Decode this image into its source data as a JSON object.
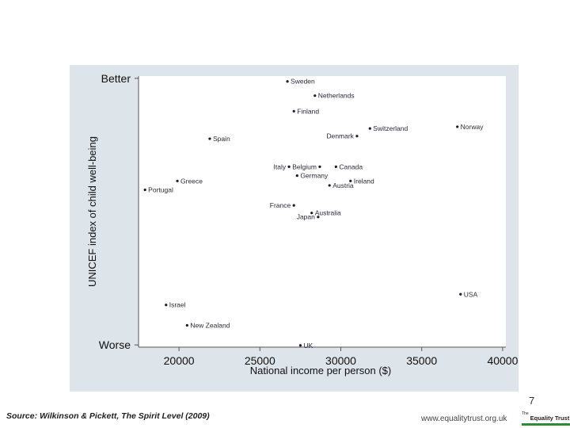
{
  "chart_data": {
    "type": "scatter",
    "title": "",
    "xlabel": "National income per person ($)",
    "ylabel": "UNICEF index of child well-being",
    "xlim": [
      17500,
      40200
    ],
    "ylim": [
      -3.05,
      3.05
    ],
    "x_ticks": [
      20000,
      25000,
      30000,
      35000,
      40000
    ],
    "x_tick_labels": [
      "20000",
      "25000",
      "30000",
      "35000",
      "40000"
    ],
    "y_ticks": [
      {
        "value": 3.0,
        "label": "Better"
      },
      {
        "value": -3.0,
        "label": "Worse"
      }
    ],
    "grid": false,
    "points": [
      {
        "label": "Sweden",
        "x": 26700,
        "y": 2.93,
        "label_side": "right"
      },
      {
        "label": "Netherlands",
        "x": 28400,
        "y": 2.61,
        "label_side": "right"
      },
      {
        "label": "Finland",
        "x": 27100,
        "y": 2.26,
        "label_side": "right"
      },
      {
        "label": "Norway",
        "x": 37200,
        "y": 1.91,
        "label_side": "right"
      },
      {
        "label": "Switzerland",
        "x": 31800,
        "y": 1.87,
        "label_side": "right"
      },
      {
        "label": "Denmark",
        "x": 31000,
        "y": 1.7,
        "label_side": "left"
      },
      {
        "label": "Spain",
        "x": 21900,
        "y": 1.64,
        "label_side": "right"
      },
      {
        "label": "Italy",
        "x": 26800,
        "y": 1.01,
        "label_side": "left"
      },
      {
        "label": "Belgium",
        "x": 28700,
        "y": 1.01,
        "label_side": "left"
      },
      {
        "label": "Canada",
        "x": 29700,
        "y": 1.01,
        "label_side": "right"
      },
      {
        "label": "Germany",
        "x": 27300,
        "y": 0.81,
        "label_side": "right"
      },
      {
        "label": "Greece",
        "x": 19900,
        "y": 0.69,
        "label_side": "right"
      },
      {
        "label": "Ireland",
        "x": 30600,
        "y": 0.69,
        "label_side": "right"
      },
      {
        "label": "Austria",
        "x": 29300,
        "y": 0.59,
        "label_side": "right"
      },
      {
        "label": "Portugal",
        "x": 17900,
        "y": 0.49,
        "label_side": "right"
      },
      {
        "label": "France",
        "x": 27100,
        "y": 0.14,
        "label_side": "left"
      },
      {
        "label": "Australia",
        "x": 28200,
        "y": -0.03,
        "label_side": "right"
      },
      {
        "label": "Japan",
        "x": 28600,
        "y": -0.12,
        "label_side": "left"
      },
      {
        "label": "USA",
        "x": 37400,
        "y": -1.86,
        "label_side": "right"
      },
      {
        "label": "Israel",
        "x": 19200,
        "y": -2.1,
        "label_side": "right"
      },
      {
        "label": "New Zealand",
        "x": 20500,
        "y": -2.56,
        "label_side": "right"
      },
      {
        "label": "UK",
        "x": 27500,
        "y": -3.01,
        "label_side": "right"
      }
    ]
  },
  "slide": {
    "page_number": "7",
    "source": "Source: Wilkinson & Pickett, The Spirit Level (2009)",
    "website": "www.equalitytrust.org.uk",
    "logo_prefix": "The",
    "logo_name": "Equality Trust"
  },
  "colors": {
    "panel_background": "#dde4ea",
    "plot_background": "#ffffff",
    "axis": "#555555",
    "text": "#111111",
    "point": "#1a1a2e",
    "logo_bar": "#2e8b3a"
  }
}
